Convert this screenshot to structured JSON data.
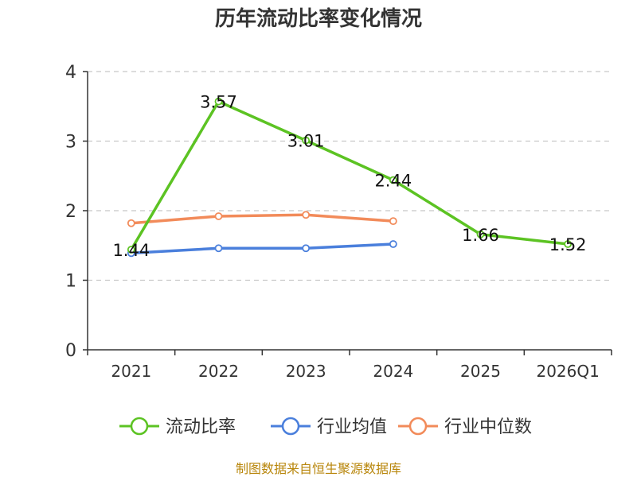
{
  "chart_data": {
    "type": "line",
    "title": "历年流动比率变化情况",
    "categories": [
      "2021",
      "2022",
      "2023",
      "2024",
      "2025",
      "2026Q1"
    ],
    "ylim": [
      0,
      4
    ],
    "yticks": [
      "0",
      "1",
      "2",
      "3",
      "4"
    ],
    "grid": true,
    "legend_position": "bottom",
    "series": [
      {
        "name": "流动比率",
        "color": "#5cc323",
        "values": [
          1.44,
          3.57,
          3.01,
          2.44,
          1.66,
          1.52
        ],
        "labels": [
          "1.44",
          "3.57",
          "3.01",
          "2.44",
          "1.66",
          "1.52"
        ],
        "marker": "circle"
      },
      {
        "name": "行业均值",
        "color": "#4a7fdc",
        "values": [
          1.39,
          1.46,
          1.46,
          1.52,
          null,
          null
        ],
        "marker": "circle"
      },
      {
        "name": "行业中位数",
        "color": "#f28b5a",
        "values": [
          1.82,
          1.92,
          1.94,
          1.85,
          null,
          null
        ],
        "marker": "circle"
      }
    ],
    "source": "制图数据来自恒生聚源数据库"
  }
}
